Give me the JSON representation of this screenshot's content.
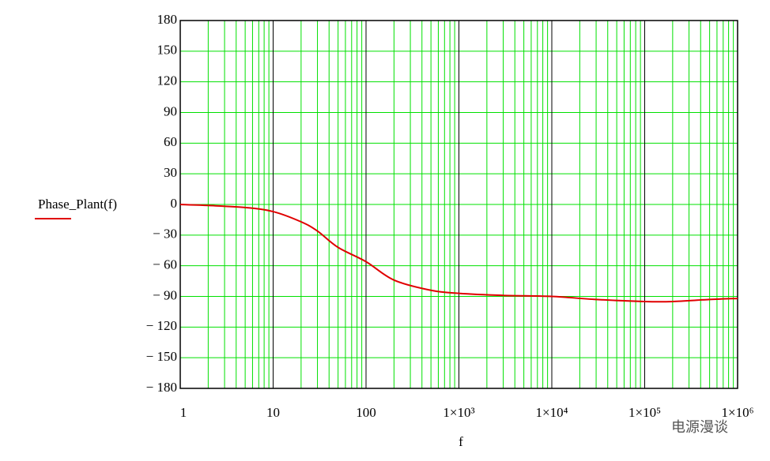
{
  "chart_data": {
    "type": "line",
    "legend_label": "Phase_Plant(f)",
    "xlabel": "f",
    "watermark": "电源漫谈",
    "x": [
      1,
      2,
      5,
      10,
      20,
      30,
      50,
      100,
      200,
      500,
      1000,
      3000,
      10000,
      30000,
      100000,
      200000,
      500000,
      1000000
    ],
    "series": [
      {
        "name": "Phase_Plant(f)",
        "color": "#e00000",
        "values": [
          0,
          -1,
          -3,
          -7,
          -17,
          -26,
          -42,
          -56,
          -74,
          -84,
          -87,
          -89,
          -90,
          -93,
          -95,
          -95,
          -93,
          -92
        ]
      }
    ],
    "xscale": "log",
    "xlim": [
      1,
      1000000
    ],
    "xticks": [
      1,
      10,
      100,
      {
        "value": 1000,
        "label": "1×10³"
      },
      {
        "value": 10000,
        "label": "1×10⁴"
      },
      {
        "value": 100000,
        "label": "1×10⁵"
      },
      {
        "value": 1000000,
        "label": "1×10⁶"
      }
    ],
    "ylim": [
      -180,
      180
    ],
    "yticks": [
      {
        "value": -180,
        "label": "− 180"
      },
      {
        "value": -150,
        "label": "− 150"
      },
      {
        "value": -120,
        "label": "− 120"
      },
      {
        "value": -90,
        "label": "− 90"
      },
      {
        "value": -60,
        "label": "− 60"
      },
      {
        "value": -30,
        "label": "− 30"
      },
      0,
      30,
      60,
      90,
      120,
      150,
      180
    ],
    "grid": true,
    "minor_grid": true,
    "grid_color": "#00e000",
    "major_grid_color": "#000000"
  }
}
